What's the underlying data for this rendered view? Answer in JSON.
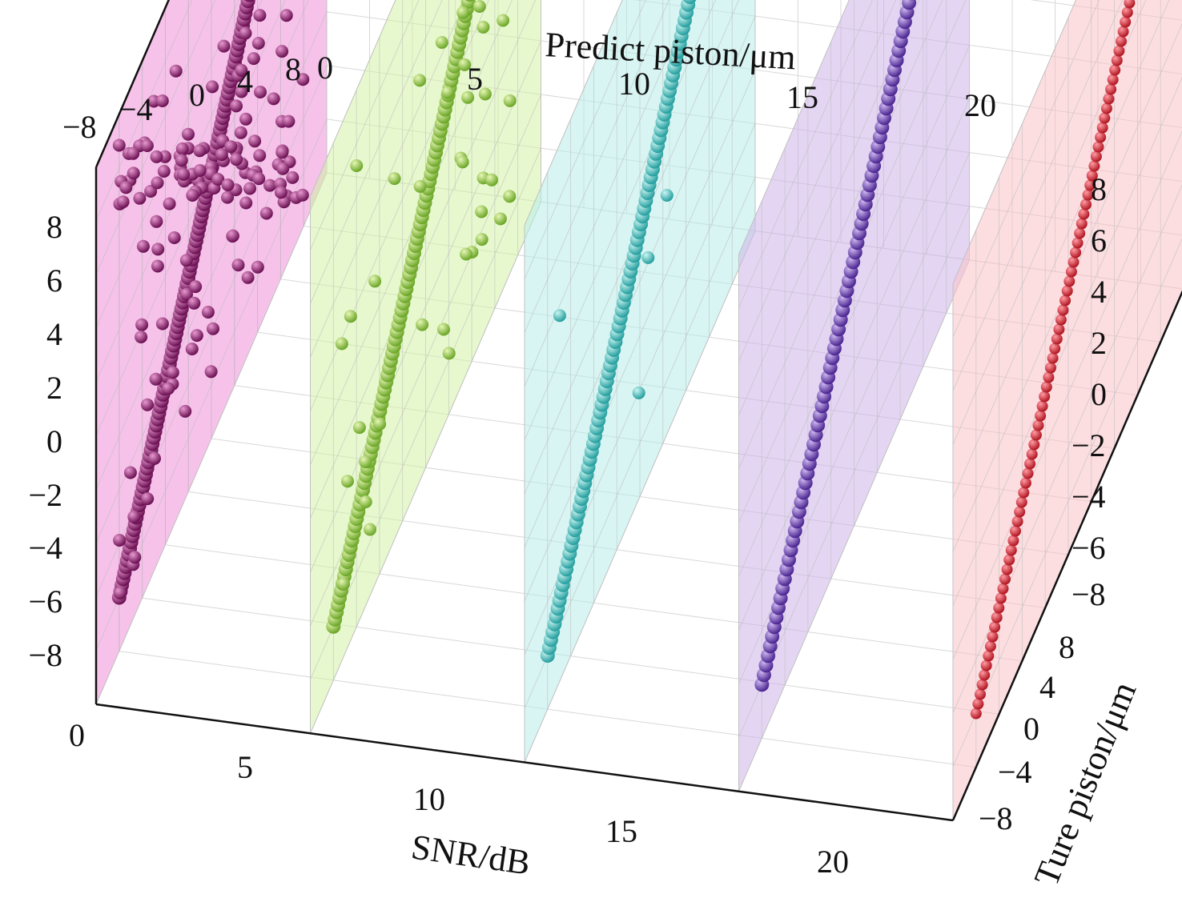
{
  "chart_data": {
    "type": "scatter",
    "title": "",
    "panels": [
      {
        "snr": 0,
        "color": "#8b1a6b",
        "plane_color": "#ee8fd8"
      },
      {
        "snr": 5,
        "color": "#8cc63f",
        "plane_color": "#d4f2a6"
      },
      {
        "snr": 10,
        "color": "#3fc1c1",
        "plane_color": "#b8ecea"
      },
      {
        "snr": 15,
        "color": "#6a3fb5",
        "plane_color": "#cdb5ea"
      },
      {
        "snr": 20,
        "color": "#d9303a",
        "plane_color": "#f9c3c8"
      }
    ],
    "axes": {
      "predict_piston": {
        "label": "Predict piston/μm",
        "range": [
          -10,
          10
        ],
        "ticks": [
          "−8",
          "−4",
          "0",
          "4",
          "8"
        ]
      },
      "left_vertical": {
        "label": "",
        "range": [
          -10,
          10
        ],
        "ticks": [
          "−8",
          "−6",
          "−4",
          "−2",
          "0",
          "2",
          "4",
          "6",
          "8"
        ]
      },
      "right_vertical": {
        "label": "",
        "range": [
          -10,
          10
        ],
        "ticks": [
          "8",
          "6",
          "4",
          "2",
          "0",
          "−2",
          "−4",
          "−6",
          "−8"
        ]
      },
      "snr_front": {
        "label": "SNR/dB",
        "range": [
          0,
          20
        ],
        "ticks": [
          "0",
          "5",
          "10",
          "15",
          "20"
        ]
      },
      "snr_back": {
        "label": "",
        "range": [
          0,
          20
        ],
        "ticks": [
          "0",
          "5",
          "10",
          "15",
          "20"
        ]
      },
      "true_piston": {
        "label": "Ture piston/μm",
        "range": [
          -10,
          10
        ],
        "ticks": [
          "8",
          "4",
          "0",
          "−4",
          "−8"
        ]
      }
    },
    "series_summary": [
      {
        "snr": 0,
        "fit": "true ≈ predicted (with opposite-sign cluster and many outliers)",
        "x_range": [
          -8,
          8
        ],
        "y_range": [
          -8,
          8
        ]
      },
      {
        "snr": 5,
        "fit": "true ≈ predicted with scattered outliers",
        "x_range": [
          -8,
          8
        ],
        "y_range": [
          -8,
          8
        ]
      },
      {
        "snr": 10,
        "fit": "true ≈ predicted, few outliers",
        "x_range": [
          -8,
          8
        ],
        "y_range": [
          -8,
          8
        ]
      },
      {
        "snr": 15,
        "fit": "true = predicted",
        "x_range": [
          -8,
          8
        ],
        "y_range": [
          -8,
          8
        ]
      },
      {
        "snr": 20,
        "fit": "true = predicted",
        "x_range": [
          -8,
          8
        ],
        "y_range": [
          -8,
          8
        ]
      }
    ]
  }
}
